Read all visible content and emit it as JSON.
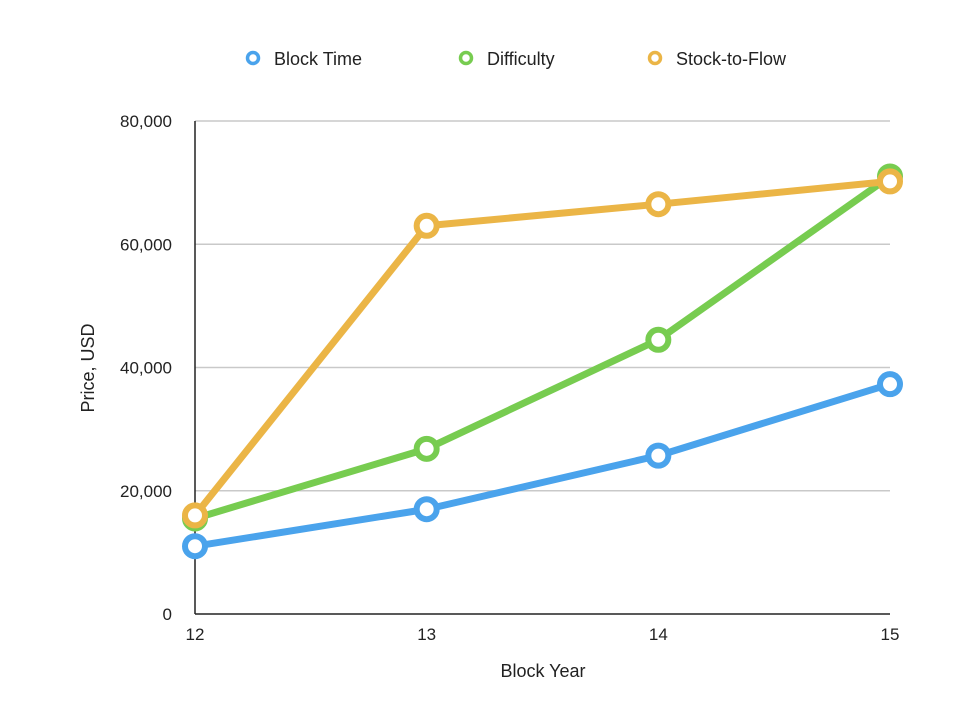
{
  "chart_data": {
    "type": "line",
    "x": [
      12,
      13,
      14,
      15
    ],
    "xlabel": "Block Year",
    "ylabel": "Price, USD",
    "ylim": [
      0,
      80000
    ],
    "yticks": [
      "0",
      "20,000",
      "40,000",
      "60,000",
      "80,000"
    ],
    "ytick_values": [
      0,
      20000,
      40000,
      60000,
      80000
    ],
    "xticks": [
      "12",
      "13",
      "14",
      "15"
    ],
    "grid": true,
    "legend_position": "top",
    "series": [
      {
        "name": "Block Time",
        "color": "#4aa3ec",
        "values": [
          11000,
          17000,
          25700,
          37300
        ]
      },
      {
        "name": "Difficulty",
        "color": "#77cc50",
        "values": [
          15500,
          26800,
          44500,
          71000
        ]
      },
      {
        "name": "Stock-to-Flow",
        "color": "#ebb546",
        "values": [
          16000,
          63000,
          66500,
          70200
        ]
      }
    ]
  }
}
